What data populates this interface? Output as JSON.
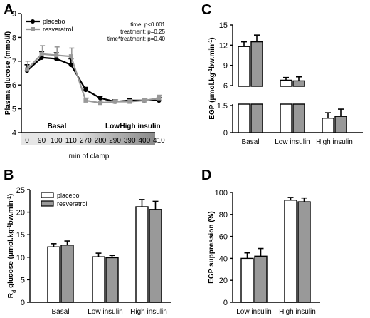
{
  "chart_data": [
    {
      "panel": "A",
      "type": "line",
      "ylabel": "Plasma glucose (mmol/l)",
      "xlabel": "min of clamp",
      "x": [
        0,
        90,
        100,
        110,
        270,
        280,
        290,
        390,
        400,
        410
      ],
      "xticklabels": [
        "0",
        "90",
        "100",
        "110",
        "270",
        "280",
        "290",
        "390",
        "400",
        "410"
      ],
      "yticks": [
        "4",
        "5",
        "6",
        "7",
        "8",
        "9"
      ],
      "ylim": [
        4,
        9
      ],
      "phases": [
        "Basal",
        "Low",
        "High insulin"
      ],
      "phase_shades": [
        "#e6e6e6",
        "#bdbdbd",
        "#8a8a8a"
      ],
      "legend_position": "top-left",
      "series": [
        {
          "name": "placebo",
          "color": "#000000",
          "values": [
            6.6,
            7.15,
            7.1,
            6.85,
            5.8,
            5.45,
            5.3,
            5.35,
            5.35,
            5.35
          ],
          "errors": [
            0.25,
            0.25,
            0.25,
            0.25,
            0.1,
            0.08,
            0.08,
            0.08,
            0.08,
            0.12
          ]
        },
        {
          "name": "resveratrol",
          "color": "#999999",
          "values": [
            6.65,
            7.3,
            7.25,
            7.2,
            5.35,
            5.25,
            5.3,
            5.3,
            5.35,
            5.45
          ],
          "errors": [
            0.35,
            0.35,
            0.35,
            0.35,
            0.1,
            0.08,
            0.08,
            0.08,
            0.08,
            0.12
          ]
        }
      ],
      "annotations": [
        "time: p<0.001",
        "treatment: p=0.25",
        "time*treatment: p=0.40"
      ]
    },
    {
      "panel": "B",
      "type": "bar",
      "ylabel_main": "glucose (μmol.kg",
      "ylabel_sup1": "-1",
      "ylabel_mid": "bw.min",
      "ylabel_sup2": "-1",
      "ylabel_end": ")",
      "ylabel_prefix": "R",
      "ylabel_sub": "d",
      "categories": [
        "Basal",
        "Low insulin",
        "High insulin"
      ],
      "yticks": [
        "0",
        "5",
        "10",
        "15",
        "20",
        "25"
      ],
      "ylim": [
        0,
        25
      ],
      "legend_position": "top-left",
      "series": [
        {
          "name": "placebo",
          "color": "#ffffff",
          "values": [
            12.3,
            10.1,
            21.2
          ],
          "errors": [
            0.7,
            0.8,
            1.6
          ]
        },
        {
          "name": "resveratrol",
          "color": "#999999",
          "values": [
            12.7,
            9.9,
            20.6
          ],
          "errors": [
            0.9,
            0.5,
            1.8
          ]
        }
      ]
    },
    {
      "panel": "C",
      "type": "bar",
      "ylabel": "EGP (μmol.kg",
      "ylabel_sup1": "-1",
      "ylabel_mid": "bw.min",
      "ylabel_sup2": "-1",
      "ylabel_end": ")",
      "categories": [
        "Basal",
        "Low insulin",
        "High insulin"
      ],
      "yticks": [
        "0",
        "1.5",
        "6",
        "9",
        "12",
        "15"
      ],
      "broken_axis": true,
      "series": [
        {
          "color": "#ffffff",
          "values": [
            11.8,
            6.8,
            0.8
          ],
          "errors": [
            0.7,
            0.4,
            0.3
          ]
        },
        {
          "color": "#999999",
          "values": [
            12.5,
            6.7,
            0.9
          ],
          "errors": [
            1.0,
            0.6,
            0.4
          ]
        }
      ]
    },
    {
      "panel": "D",
      "type": "bar",
      "ylabel": "EGP suppression (%)",
      "categories": [
        "Low insulin",
        "High insulin"
      ],
      "yticks": [
        "0",
        "20",
        "40",
        "60",
        "80",
        "100"
      ],
      "ylim": [
        0,
        100
      ],
      "series": [
        {
          "color": "#ffffff",
          "values": [
            40,
            93
          ],
          "errors": [
            5,
            2.5
          ]
        },
        {
          "color": "#999999",
          "values": [
            42,
            91.5
          ],
          "errors": [
            7,
            3.5
          ]
        }
      ]
    }
  ]
}
